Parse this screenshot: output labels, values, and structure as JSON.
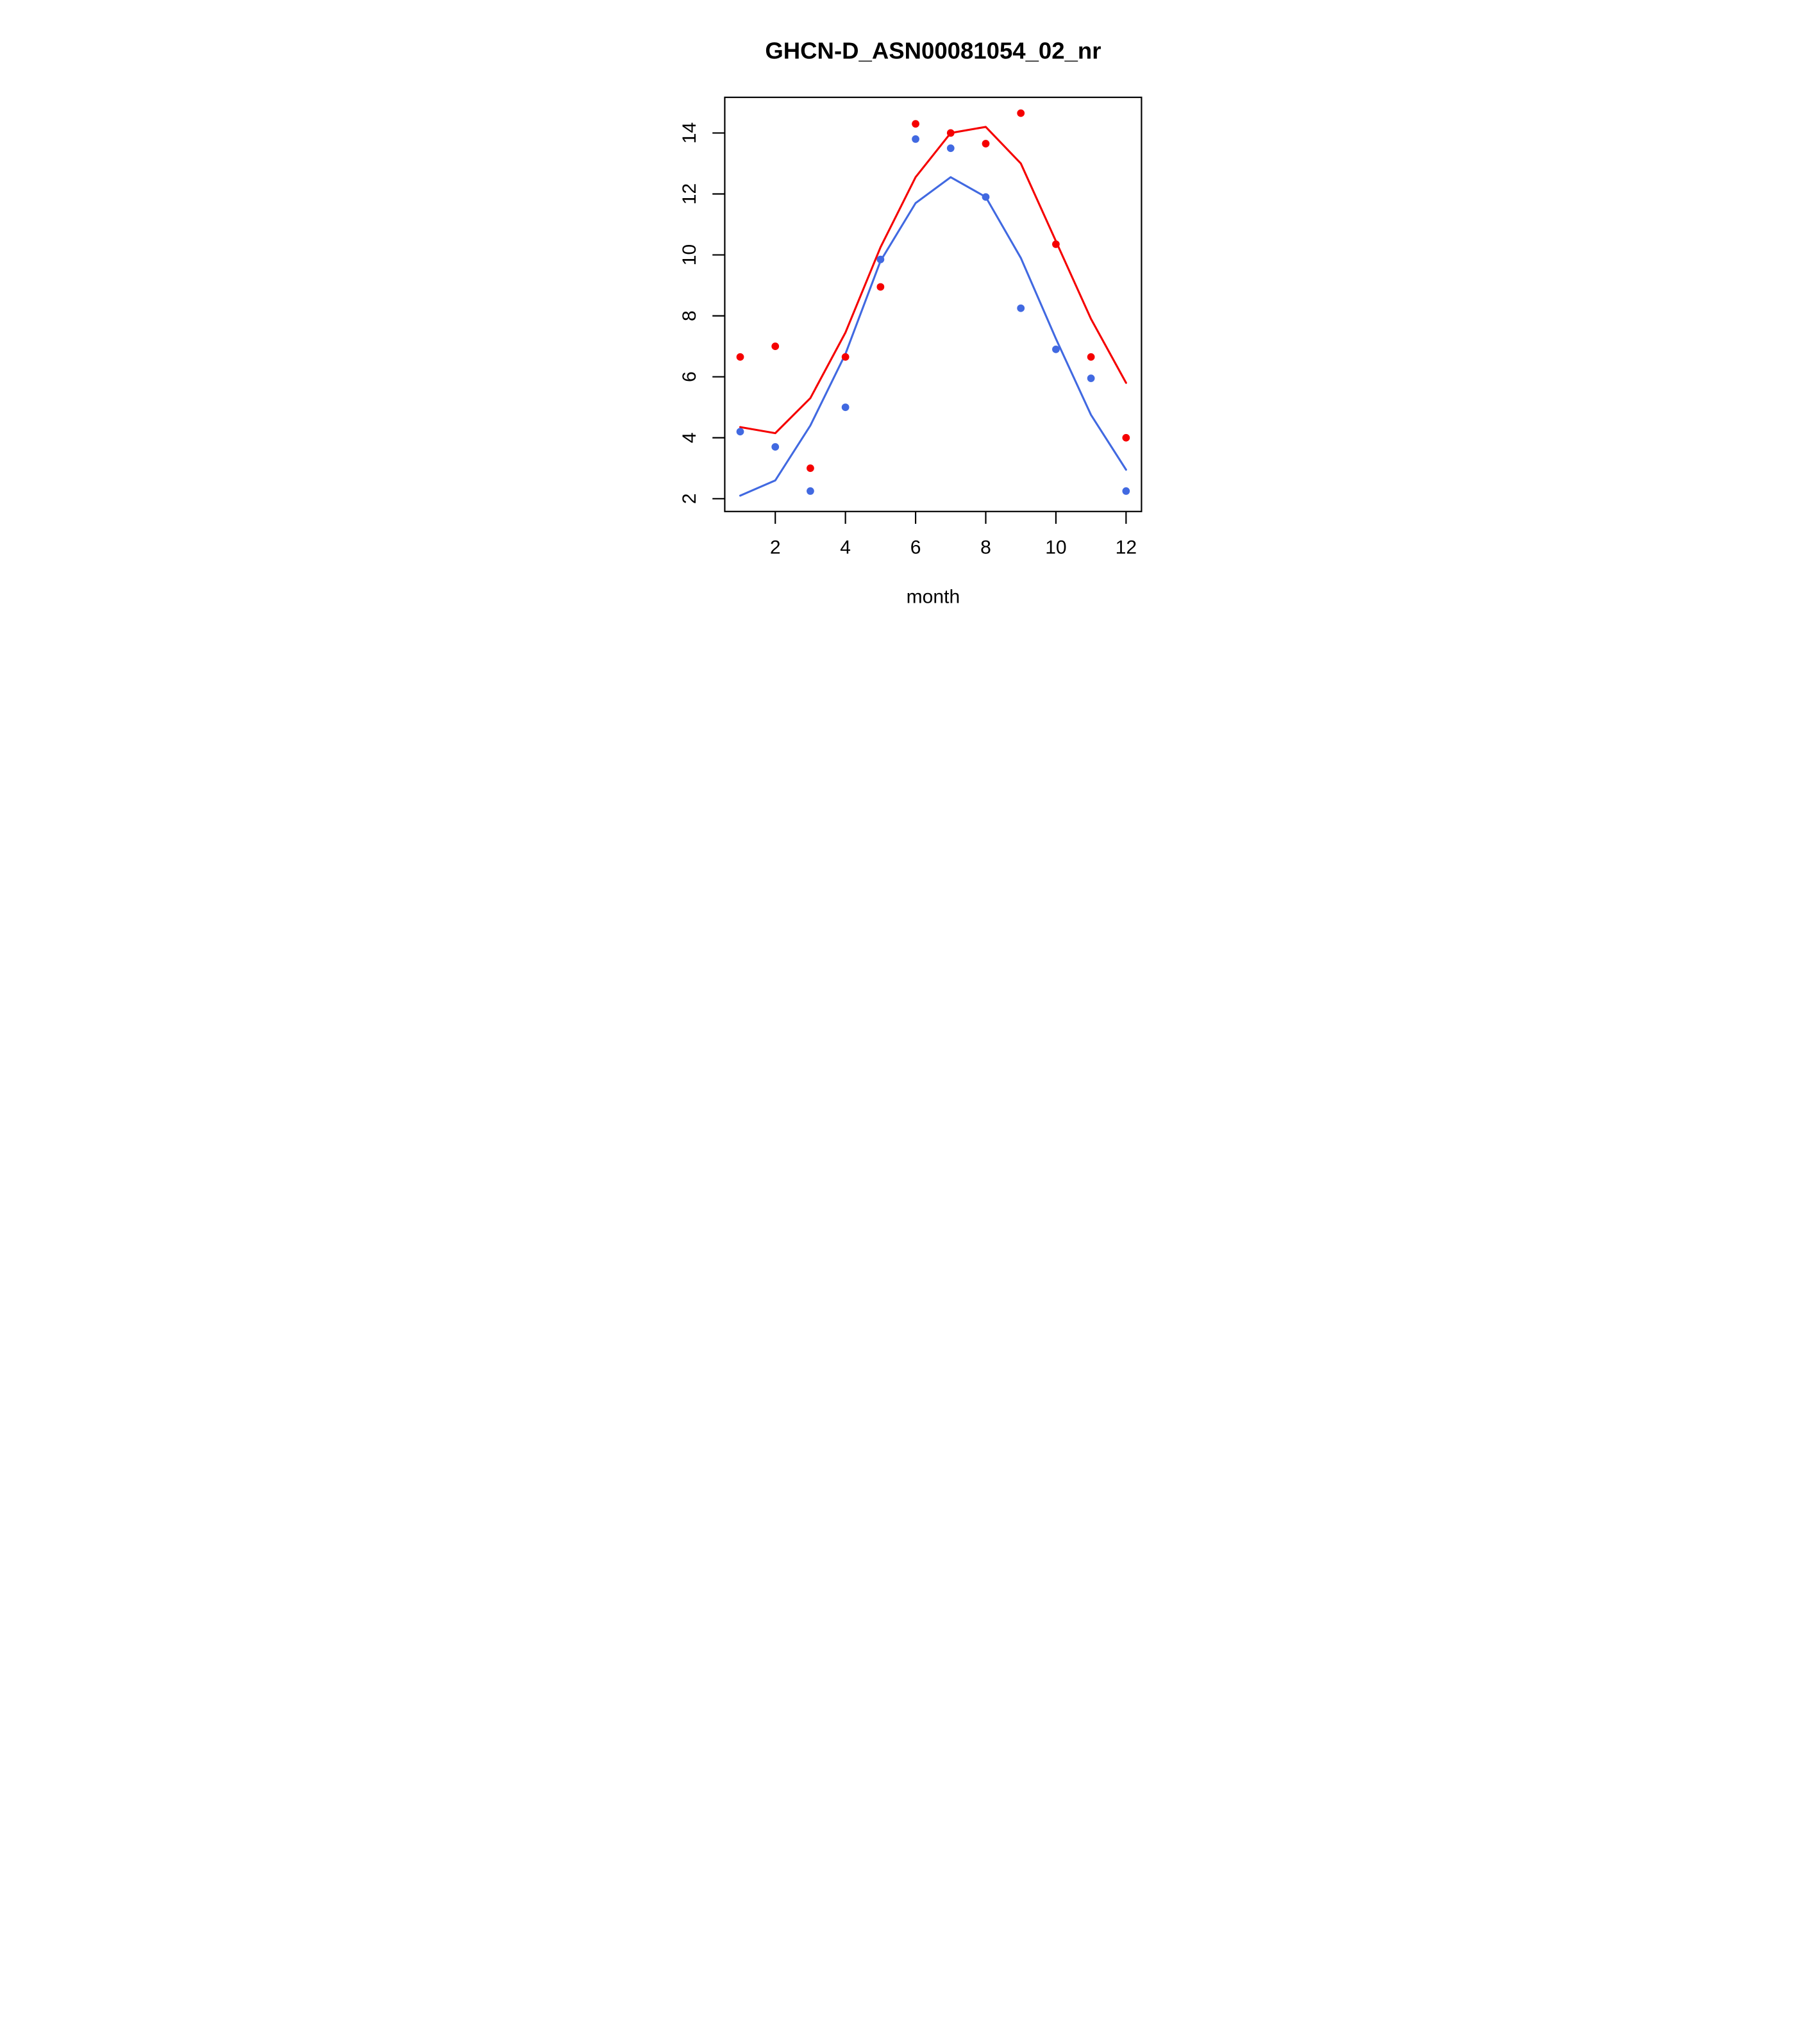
{
  "figure": {
    "background": "#ffffff"
  },
  "chart_data": {
    "type": "line",
    "title": "GHCN-D_ASN00081054_02_nr",
    "xlabel": "month",
    "ylabel": "",
    "x": [
      1,
      2,
      3,
      4,
      5,
      6,
      7,
      8,
      9,
      10,
      11,
      12
    ],
    "xlim": [
      0.56,
      12.44
    ],
    "ylim": [
      1.58,
      15.17
    ],
    "x_ticks": [
      2,
      4,
      6,
      8,
      10,
      12
    ],
    "y_ticks": [
      2,
      4,
      6,
      8,
      10,
      12,
      14
    ],
    "grid": false,
    "legend_position": "none",
    "colors": {
      "red": "#f50000",
      "blue": "#4169e1",
      "axis": "#000000"
    },
    "series": [
      {
        "name": "red-line",
        "type": "line",
        "color": "red",
        "values": [
          4.35,
          4.15,
          5.3,
          7.45,
          10.25,
          12.55,
          14.0,
          14.2,
          13.0,
          10.45,
          7.9,
          5.8
        ]
      },
      {
        "name": "blue-line",
        "type": "line",
        "color": "blue",
        "values": [
          2.1,
          2.6,
          4.4,
          6.75,
          9.8,
          11.7,
          12.55,
          11.9,
          9.9,
          7.25,
          4.75,
          2.95
        ]
      },
      {
        "name": "red-points",
        "type": "scatter",
        "color": "red",
        "values": [
          6.65,
          7.0,
          3.0,
          6.65,
          8.95,
          14.3,
          14.0,
          13.65,
          14.65,
          10.35,
          6.65,
          4.0
        ]
      },
      {
        "name": "blue-points",
        "type": "scatter",
        "color": "blue",
        "values": [
          4.2,
          3.7,
          2.25,
          5.0,
          9.85,
          13.8,
          13.5,
          11.9,
          8.25,
          6.9,
          5.95,
          2.25
        ]
      }
    ]
  }
}
